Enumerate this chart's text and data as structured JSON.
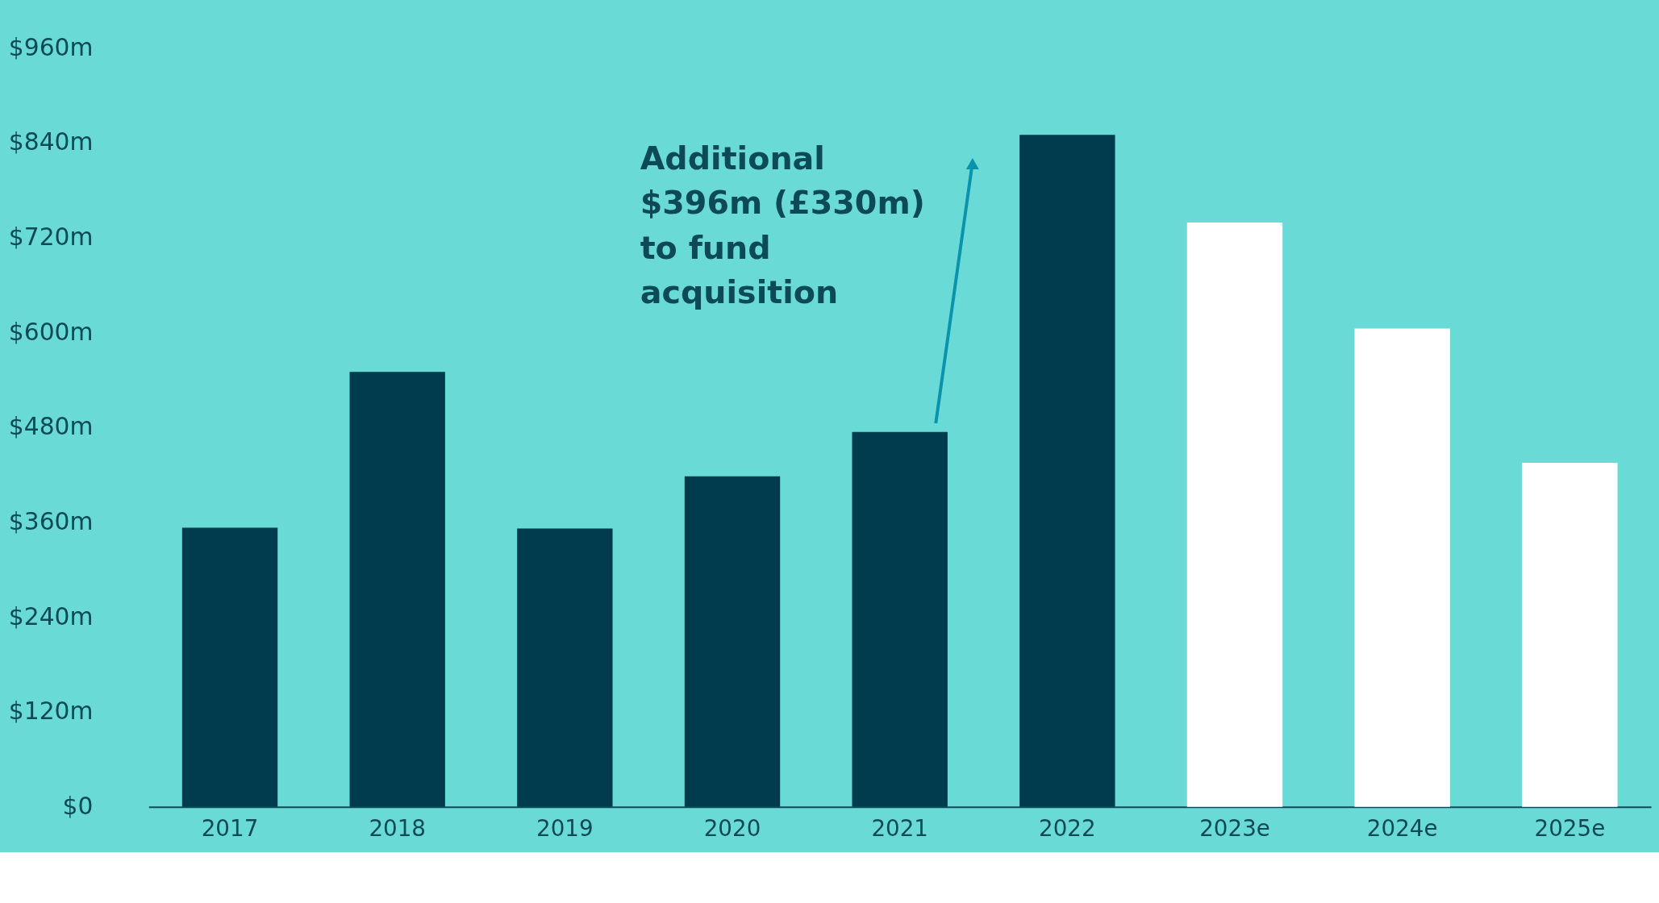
{
  "chart_data": {
    "type": "bar",
    "categories": [
      "2017",
      "2018",
      "2019",
      "2020",
      "2021",
      "2022",
      "2023e",
      "2024e",
      "2025e"
    ],
    "values": [
      353,
      550,
      352,
      418,
      474,
      850,
      739,
      605,
      435
    ],
    "colors": [
      "#003c4e",
      "#003c4e",
      "#003c4e",
      "#003c4e",
      "#003c4e",
      "#003c4e",
      "#ffffff",
      "#ffffff",
      "#ffffff"
    ],
    "ylim": [
      0,
      960
    ],
    "yticks": [
      {
        "value": 0,
        "label": "$0"
      },
      {
        "value": 120,
        "label": "$120m"
      },
      {
        "value": 240,
        "label": "$240m"
      },
      {
        "value": 360,
        "label": "$360m"
      },
      {
        "value": 480,
        "label": "$480m"
      },
      {
        "value": 600,
        "label": "$600m"
      },
      {
        "value": 720,
        "label": "$720m"
      },
      {
        "value": 840,
        "label": "$840m"
      },
      {
        "value": 960,
        "label": "$960m"
      }
    ],
    "annotations": [
      "Additional $396m (£330m) to fund acquisition"
    ],
    "grid": false
  }
}
